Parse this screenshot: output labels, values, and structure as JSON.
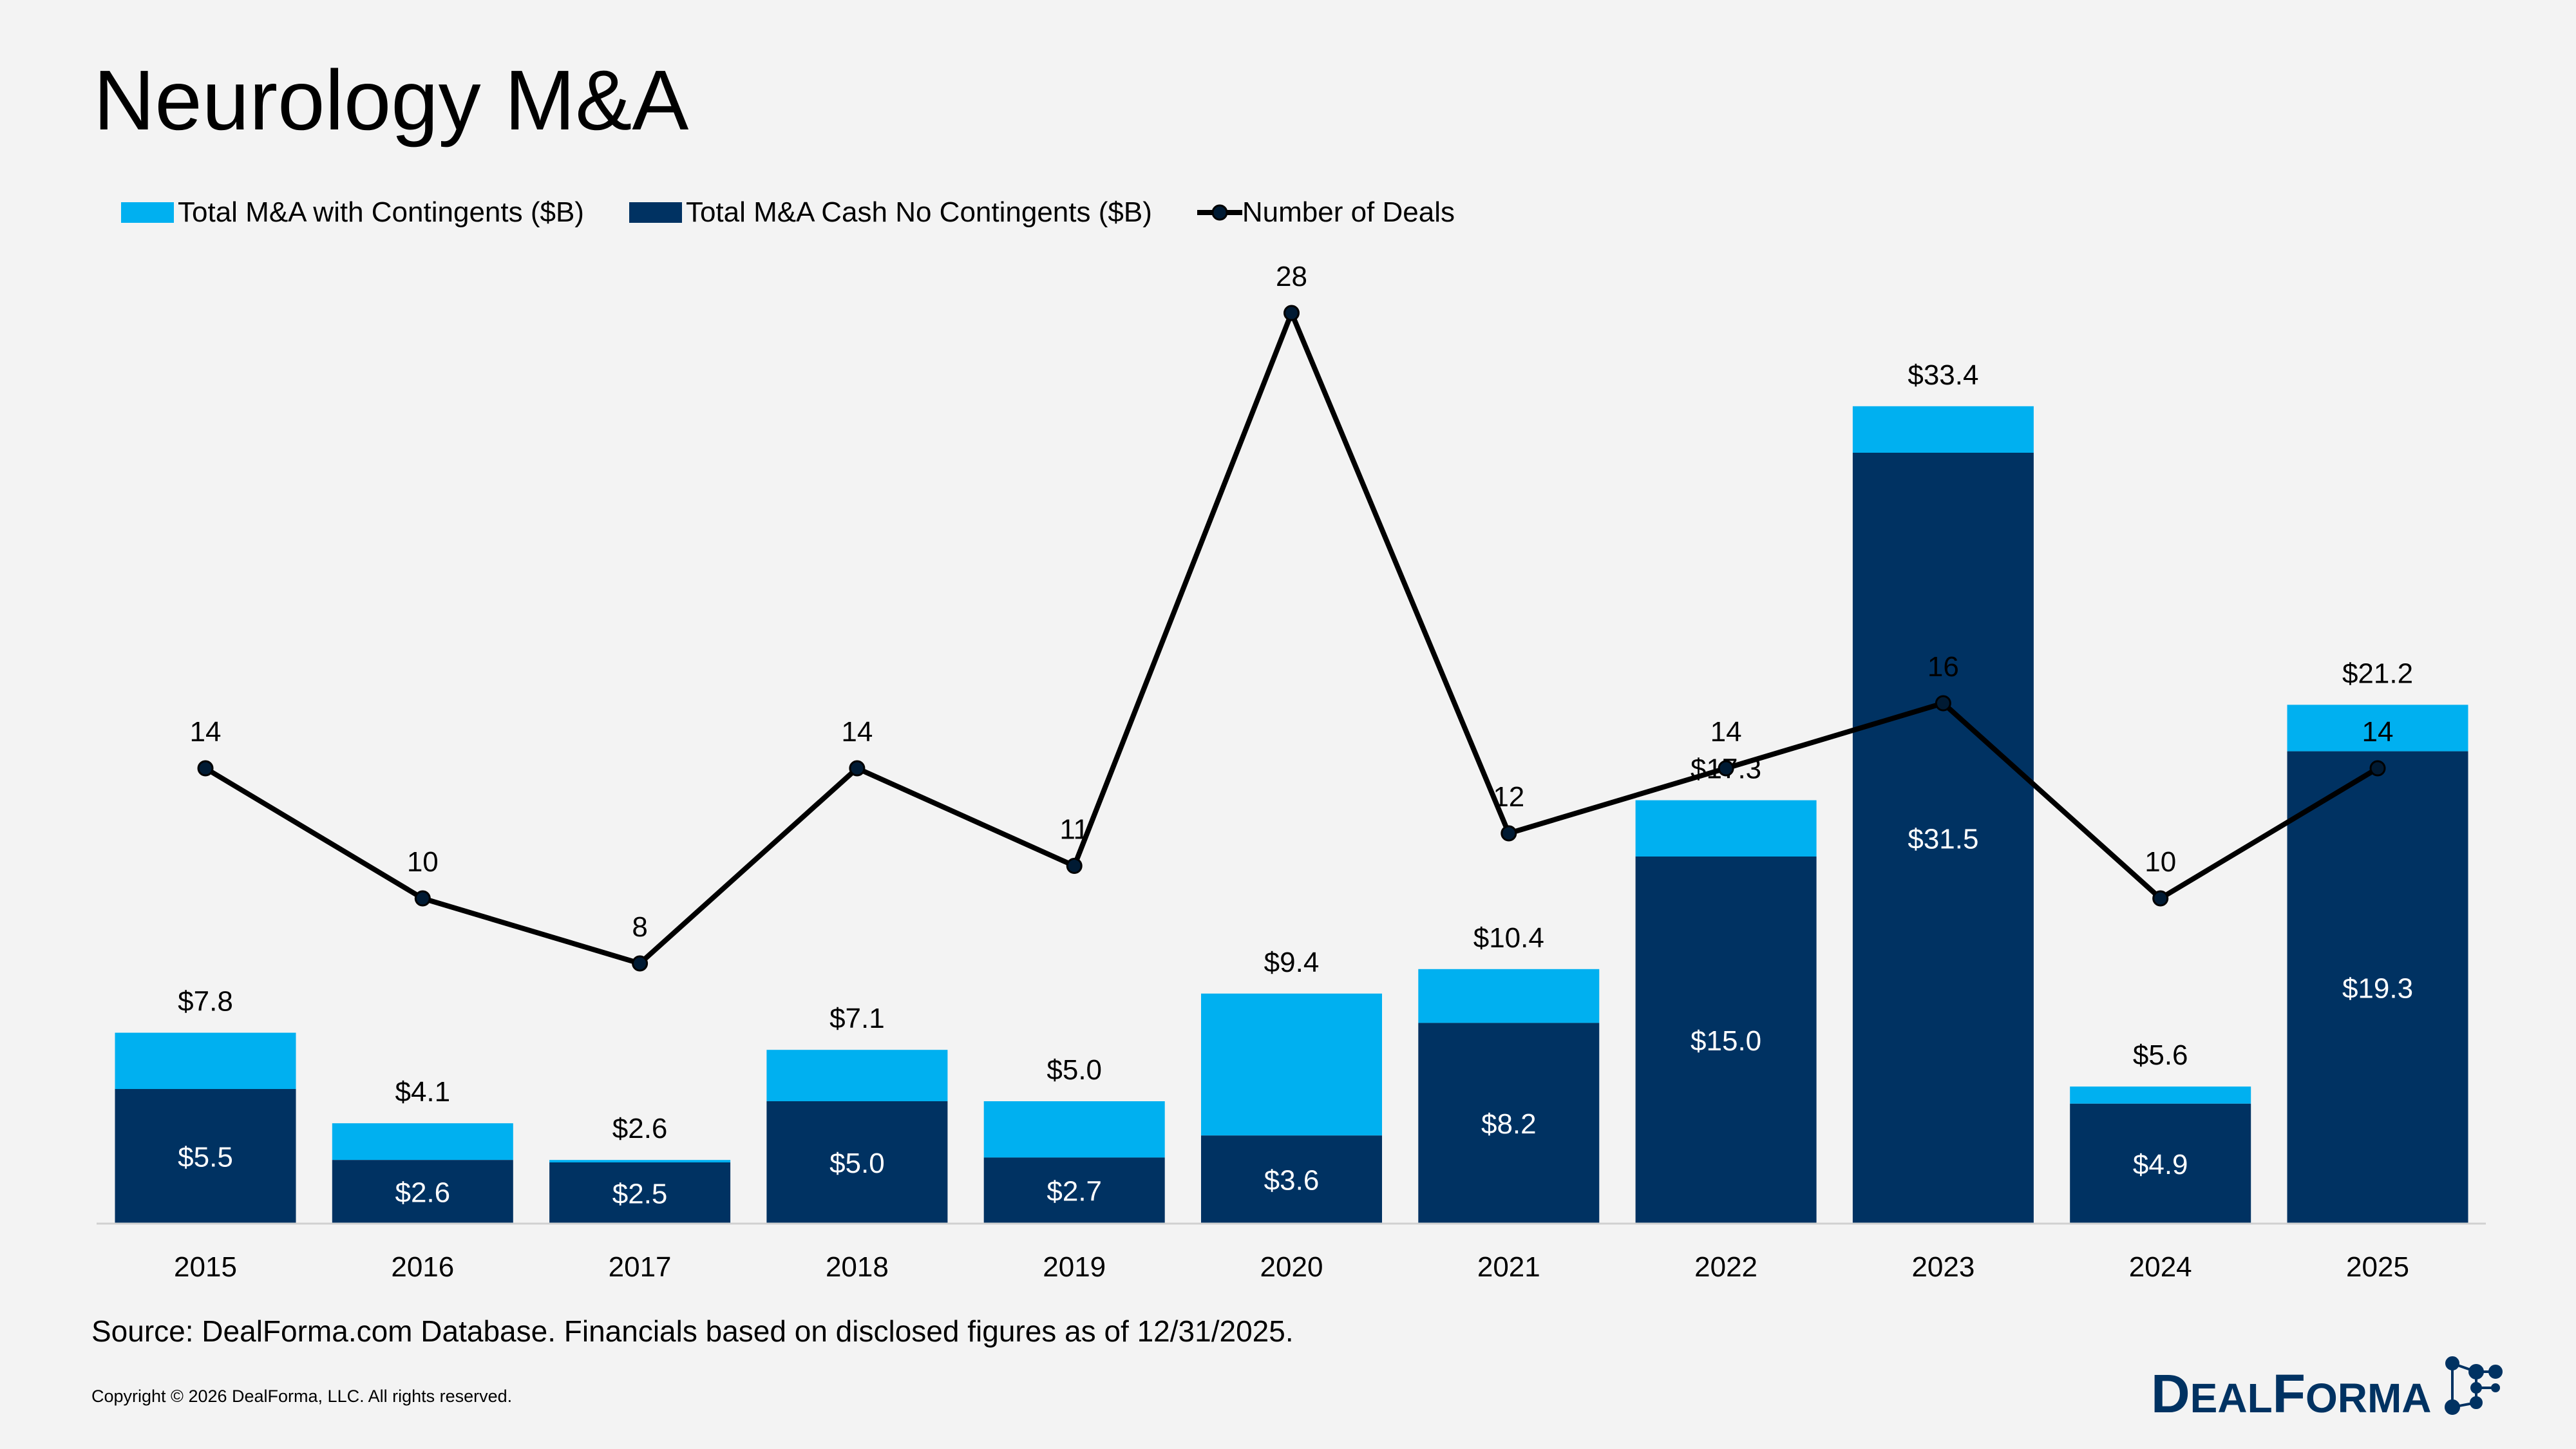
{
  "page": {
    "title": "Neurology M&A",
    "source": "Source: DealForma.com Database. Financials based on disclosed figures as of 12/31/2025.",
    "copyright": "Copyright © 2026 DealForma, LLC. All rights reserved.",
    "logo_text": "DEALFORMA"
  },
  "colors": {
    "contingents": "#00B0F0",
    "cash": "#003262",
    "line": "#000000",
    "background": "#F3F3F3"
  },
  "chart_data": {
    "type": "bar",
    "stacked": true,
    "categories": [
      "2015",
      "2016",
      "2017",
      "2018",
      "2019",
      "2020",
      "2021",
      "2022",
      "2023",
      "2024",
      "2025"
    ],
    "series": [
      {
        "name": "Total M&A with Contingents ($B)",
        "kind": "bar-total",
        "values": [
          7.8,
          4.1,
          2.6,
          7.1,
          5.0,
          9.4,
          10.4,
          17.3,
          33.4,
          5.6,
          21.2
        ],
        "labels": [
          "$7.8",
          "$4.1",
          "$2.6",
          "$7.1",
          "$5.0",
          "$9.4",
          "$10.4",
          "$17.3",
          "$33.4",
          "$5.6",
          "$21.2"
        ]
      },
      {
        "name": "Total M&A Cash No Contingents ($B)",
        "kind": "bar",
        "values": [
          5.5,
          2.6,
          2.5,
          5.0,
          2.7,
          3.6,
          8.2,
          15.0,
          31.5,
          4.9,
          19.3
        ],
        "labels": [
          "$5.5",
          "$2.6",
          "$2.5",
          "$5.0",
          "$2.7",
          "$3.6",
          "$8.2",
          "$15.0",
          "$31.5",
          "$4.9",
          "$19.3"
        ]
      },
      {
        "name": "Number of Deals",
        "kind": "line",
        "axis": "secondary",
        "values": [
          14,
          10,
          8,
          14,
          11,
          28,
          12,
          14,
          16,
          10,
          14
        ]
      }
    ],
    "legend": "top-left",
    "grid": false,
    "y_axis_visible": false
  }
}
